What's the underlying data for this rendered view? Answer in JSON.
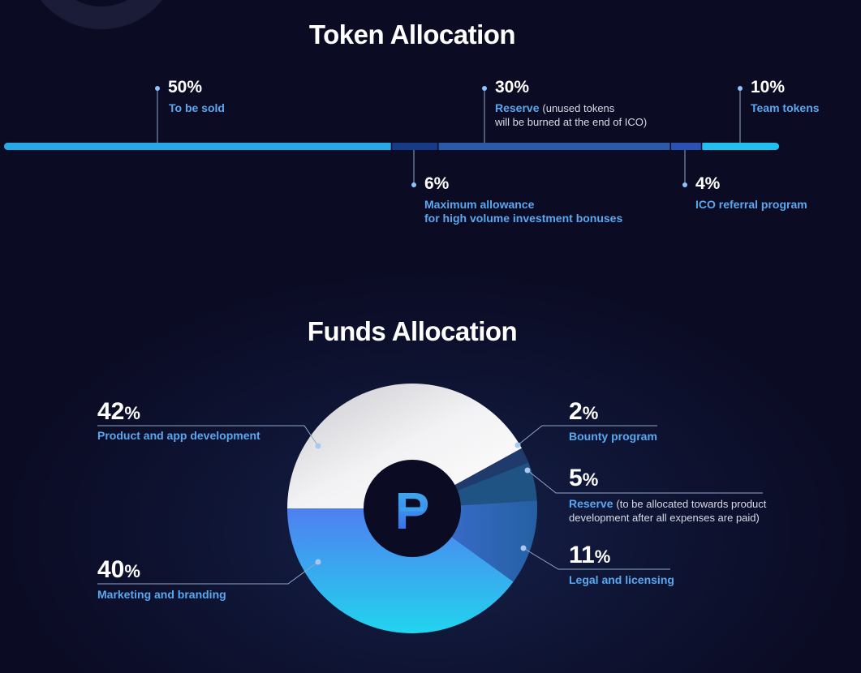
{
  "token": {
    "title": "Token Allocation",
    "segments": [
      {
        "pct": "50%",
        "label": "To be sold",
        "note": ""
      },
      {
        "pct": "6%",
        "label": "Maximum allowance",
        "label2": "for high volume investment bonuses",
        "note": ""
      },
      {
        "pct": "30%",
        "label": "Reserve",
        "note": "(unused tokens",
        "note2": "will be burned at the end of ICO)"
      },
      {
        "pct": "4%",
        "label": "ICO referral program",
        "note": ""
      },
      {
        "pct": "10%",
        "label": "Team tokens",
        "note": ""
      }
    ]
  },
  "funds": {
    "title": "Funds Allocation",
    "items": [
      {
        "value": "42",
        "sym": "%",
        "label": "Product and app development"
      },
      {
        "value": "40",
        "sym": "%",
        "label": "Marketing and branding"
      },
      {
        "value": "2",
        "sym": "%",
        "label": "Bounty program"
      },
      {
        "value": "5",
        "sym": "%",
        "label": "Reserve",
        "note": "(to be allocated towards product",
        "note2": "development after all expenses are paid)"
      },
      {
        "value": "11",
        "sym": "%",
        "label": "Legal and licensing"
      }
    ],
    "logo_glyph": "Р"
  },
  "chart_data": [
    {
      "type": "bar",
      "title": "Token Allocation",
      "categories": [
        "To be sold",
        "Maximum allowance for high volume investment bonuses",
        "Reserve",
        "ICO referral program",
        "Team tokens"
      ],
      "values": [
        50,
        6,
        30,
        4,
        10
      ],
      "colors": [
        "#29a8e6",
        "#173b86",
        "#2d5aa8",
        "#2a52b4",
        "#22c0ee"
      ]
    },
    {
      "type": "pie",
      "title": "Funds Allocation",
      "categories": [
        "Product and app development",
        "Bounty program",
        "Reserve",
        "Legal and licensing",
        "Marketing and branding"
      ],
      "values": [
        42,
        2,
        5,
        11,
        40
      ],
      "colors": [
        "#eeeeee",
        "#1f3a6b",
        "#1f5384",
        "#2b63a8",
        "#3d8ee6"
      ]
    }
  ]
}
